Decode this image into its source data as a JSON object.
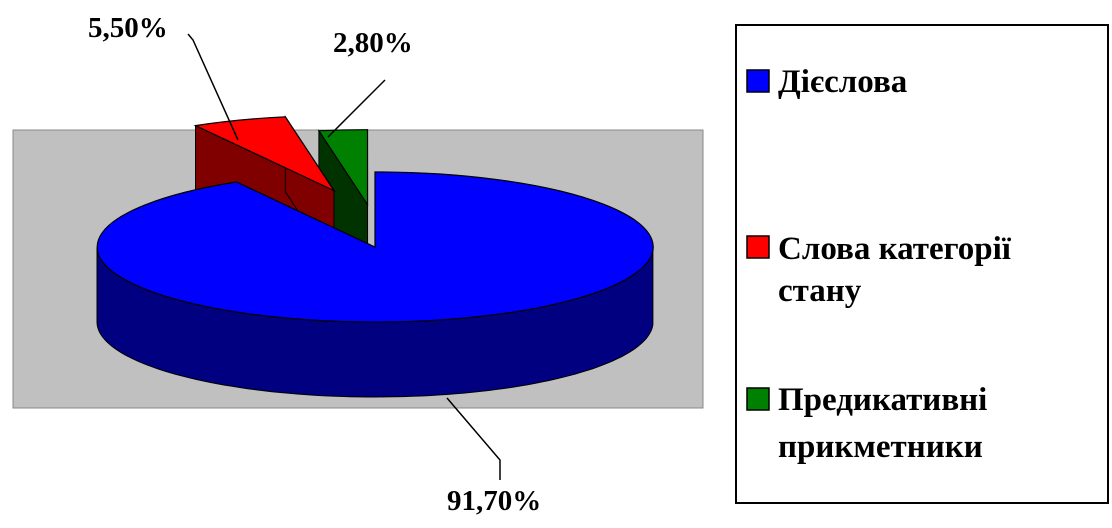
{
  "chart_data": {
    "type": "pie",
    "style": "3d-exploded",
    "categories": [
      "Дієслова",
      "Слова категорії стану",
      "Предикативні прикметники"
    ],
    "values": [
      91.7,
      5.5,
      2.8
    ],
    "data_labels": [
      "91,70%",
      "5,50%",
      "2,80%"
    ],
    "legend": {
      "placement": "right",
      "entries": [
        {
          "lines": [
            "Дієслова"
          ]
        },
        {
          "lines": [
            "Слова категорії",
            "стану"
          ]
        },
        {
          "lines": [
            "Предикативні",
            "прикметники"
          ]
        }
      ]
    },
    "colors": [
      "#0000ff",
      "#ff0000",
      "#008000"
    ],
    "side_colors": [
      "#000080",
      "#800000",
      "#003300"
    ],
    "plot_background": "#c0c0c0"
  }
}
